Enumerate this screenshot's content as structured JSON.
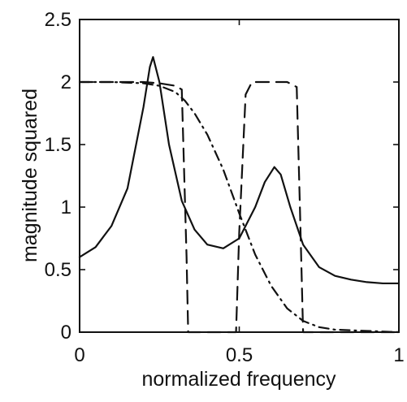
{
  "chart_data": {
    "type": "line",
    "title": "",
    "xlabel": "normalized frequency",
    "ylabel": "magnitude squared",
    "xlim": [
      0,
      1
    ],
    "ylim": [
      0,
      2.5
    ],
    "xticks": [
      "0",
      "0.5",
      "1"
    ],
    "yticks": [
      "0",
      "0.5",
      "1",
      "1.5",
      "2",
      "2.5"
    ],
    "grid": false,
    "legend": "none",
    "series": [
      {
        "style": "solid",
        "color": "#111111",
        "x": [
          0,
          0.05,
          0.1,
          0.15,
          0.2,
          0.22,
          0.23,
          0.25,
          0.28,
          0.32,
          0.36,
          0.4,
          0.45,
          0.5,
          0.55,
          0.58,
          0.61,
          0.63,
          0.66,
          0.7,
          0.75,
          0.8,
          0.85,
          0.9,
          0.95,
          1.0
        ],
        "y": [
          0.6,
          0.68,
          0.85,
          1.15,
          1.8,
          2.12,
          2.2,
          2.0,
          1.5,
          1.05,
          0.82,
          0.7,
          0.67,
          0.75,
          1.0,
          1.2,
          1.32,
          1.26,
          1.0,
          0.7,
          0.52,
          0.45,
          0.42,
          0.4,
          0.39,
          0.39
        ]
      },
      {
        "style": "dashed",
        "color": "#111111",
        "x": [
          0,
          0.05,
          0.1,
          0.15,
          0.2,
          0.25,
          0.3,
          0.32,
          0.335,
          0.34,
          0.45,
          0.49,
          0.5,
          0.52,
          0.54,
          0.6,
          0.65,
          0.68,
          0.69,
          0.7,
          0.75,
          0.8,
          0.85,
          0.9,
          0.95,
          1.0
        ],
        "y": [
          2.0,
          2.0,
          2.0,
          2.0,
          2.0,
          1.99,
          1.97,
          1.94,
          0.6,
          0.0,
          0.0,
          0.0,
          0.8,
          1.9,
          2.0,
          2.0,
          2.0,
          1.96,
          1.0,
          0.0,
          0.0,
          0.0,
          0.0,
          0.0,
          0.0,
          0.0
        ]
      },
      {
        "style": "dashdot",
        "color": "#111111",
        "x": [
          0,
          0.1,
          0.2,
          0.25,
          0.3,
          0.33,
          0.36,
          0.4,
          0.45,
          0.5,
          0.55,
          0.6,
          0.65,
          0.7,
          0.75,
          0.8,
          0.9,
          1.0
        ],
        "y": [
          2.0,
          2.0,
          1.99,
          1.97,
          1.92,
          1.85,
          1.75,
          1.58,
          1.3,
          0.95,
          0.62,
          0.37,
          0.19,
          0.09,
          0.04,
          0.02,
          0.01,
          0.0
        ]
      }
    ]
  }
}
